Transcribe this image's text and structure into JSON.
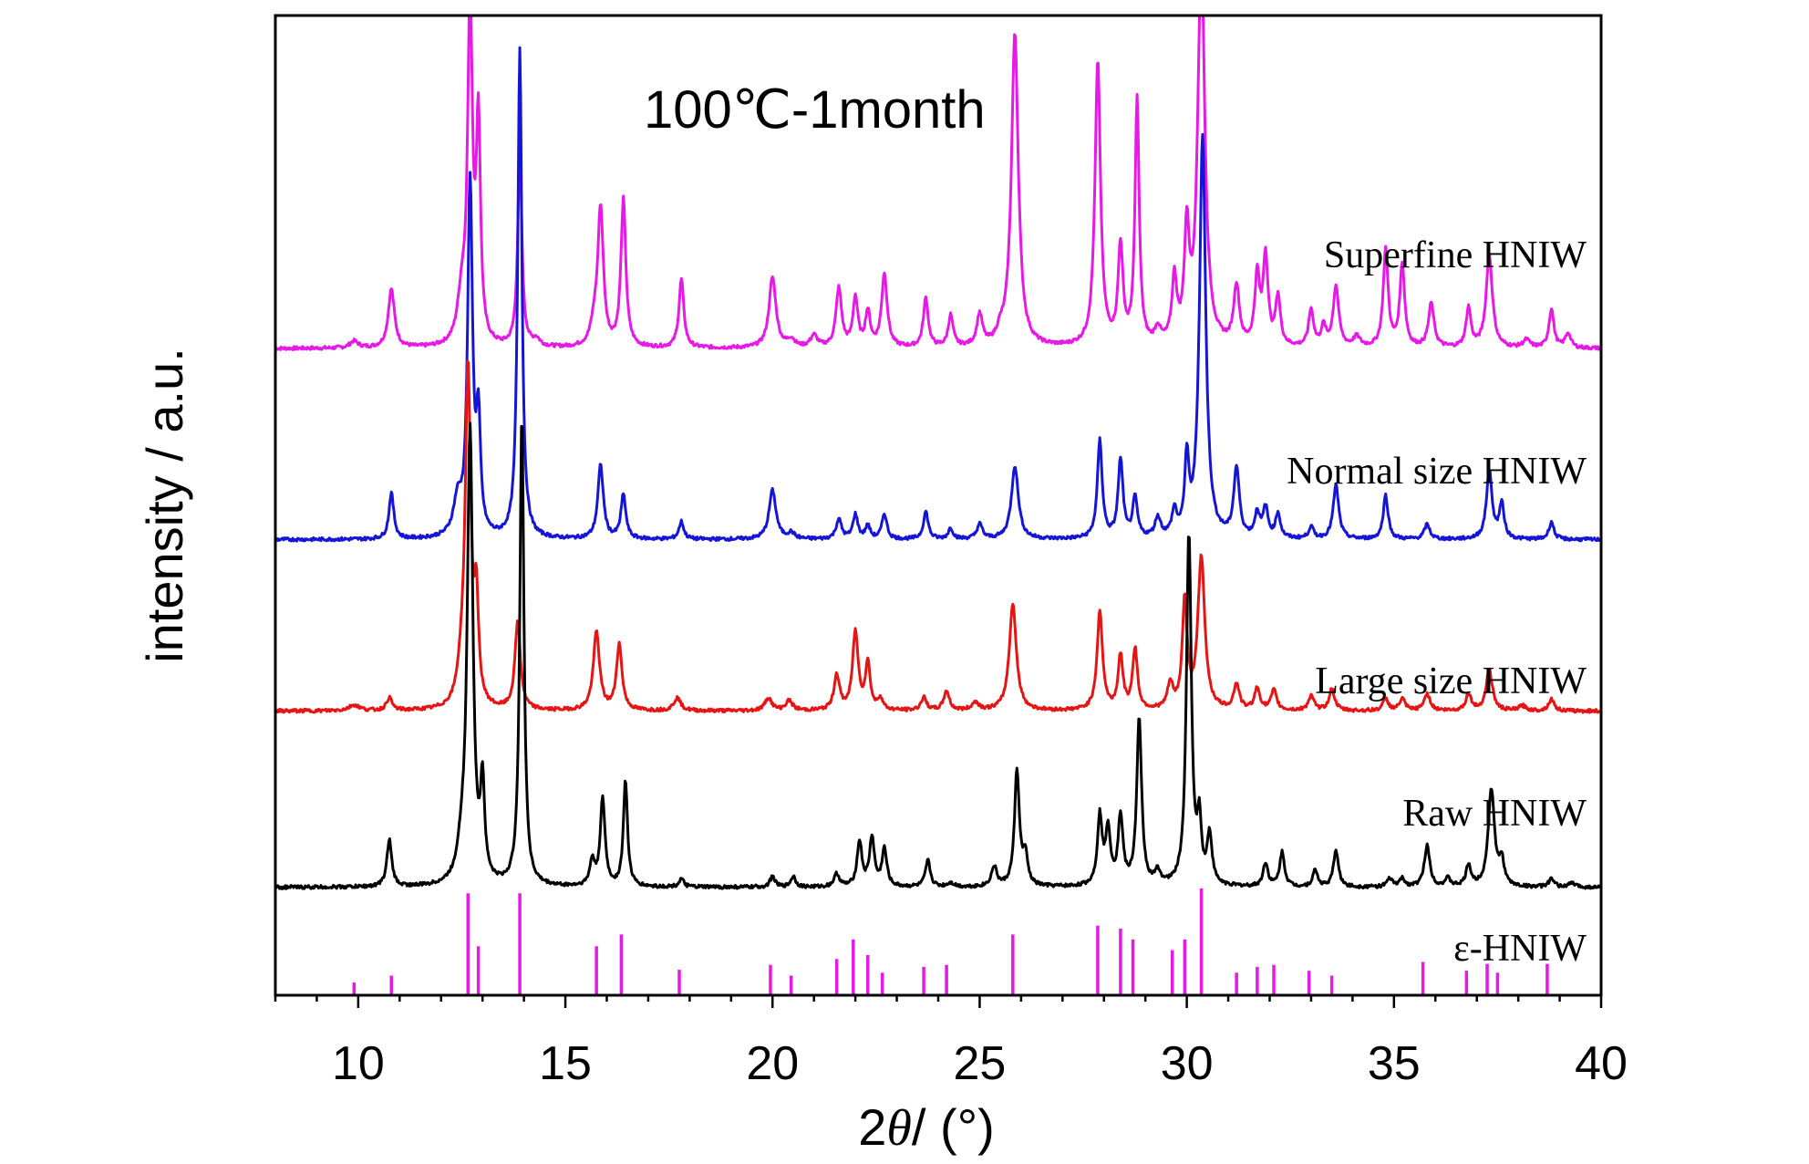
{
  "chart_data": {
    "type": "line",
    "title": "100℃-1month",
    "xlabel": "2θ/ (°)",
    "xlabel_parts": {
      "prefix": "2",
      "theta": "θ",
      "suffix": "/ (°)"
    },
    "ylabel": "intensity / a.u.",
    "xlim": [
      8,
      40
    ],
    "ylim": [
      0,
      100
    ],
    "xticks": [
      10,
      15,
      20,
      25,
      30,
      35,
      40
    ],
    "xtick_labels": [
      "10",
      "15",
      "20",
      "25",
      "30",
      "35",
      "40"
    ],
    "yticks_shown": false,
    "colors": {
      "superfine": "#e619e6",
      "normal": "#1515d6",
      "large": "#e61515",
      "raw": "#000000",
      "reference": "#e619e6"
    },
    "series": [
      {
        "key": "superfine",
        "name": "Superfine HNIW",
        "baseline": 66,
        "peaks": [
          [
            9.9,
            0.7,
            0.12
          ],
          [
            10.8,
            6,
            0.09
          ],
          [
            12.5,
            4.5,
            0.12
          ],
          [
            12.7,
            34,
            0.07
          ],
          [
            12.9,
            22,
            0.06
          ],
          [
            13.9,
            20,
            0.06
          ],
          [
            14.3,
            0.7,
            0.1
          ],
          [
            15.7,
            2,
            0.1
          ],
          [
            15.85,
            14,
            0.08
          ],
          [
            16.4,
            15,
            0.07
          ],
          [
            17.8,
            7,
            0.07
          ],
          [
            20.0,
            7.2,
            0.1
          ],
          [
            20.45,
            0.8,
            0.1
          ],
          [
            21.0,
            1.2,
            0.1
          ],
          [
            21.6,
            6,
            0.08
          ],
          [
            22.0,
            5,
            0.07
          ],
          [
            22.3,
            3.5,
            0.07
          ],
          [
            22.7,
            7.5,
            0.08
          ],
          [
            23.7,
            5,
            0.07
          ],
          [
            24.3,
            3.2,
            0.07
          ],
          [
            25.0,
            3.2,
            0.08
          ],
          [
            25.5,
            1,
            0.1
          ],
          [
            25.85,
            32,
            0.1
          ],
          [
            27.85,
            29,
            0.08
          ],
          [
            28.4,
            10,
            0.07
          ],
          [
            28.8,
            25,
            0.06
          ],
          [
            29.3,
            1.5,
            0.08
          ],
          [
            29.7,
            6.5,
            0.07
          ],
          [
            30.0,
            11,
            0.07
          ],
          [
            30.35,
            40,
            0.1
          ],
          [
            31.2,
            6,
            0.08
          ],
          [
            31.7,
            7,
            0.07
          ],
          [
            31.9,
            9,
            0.07
          ],
          [
            32.2,
            5,
            0.07
          ],
          [
            33.0,
            3.8,
            0.07
          ],
          [
            33.3,
            2,
            0.07
          ],
          [
            33.6,
            6.2,
            0.08
          ],
          [
            34.1,
            1.0,
            0.1
          ],
          [
            34.8,
            10,
            0.07
          ],
          [
            35.2,
            8.5,
            0.07
          ],
          [
            35.9,
            4.5,
            0.08
          ],
          [
            36.8,
            4,
            0.07
          ],
          [
            37.3,
            9.5,
            0.09
          ],
          [
            38.2,
            0.8,
            0.1
          ],
          [
            38.8,
            4,
            0.07
          ],
          [
            39.2,
            1.5,
            0.08
          ]
        ]
      },
      {
        "key": "normal",
        "name": "Normal size HNIW",
        "baseline": 46.5,
        "peaks": [
          [
            10.8,
            4.7,
            0.07
          ],
          [
            12.4,
            3.5,
            0.12
          ],
          [
            12.7,
            36,
            0.07
          ],
          [
            12.9,
            11,
            0.06
          ],
          [
            13.9,
            50,
            0.06
          ],
          [
            15.85,
            7.5,
            0.08
          ],
          [
            16.4,
            4.5,
            0.07
          ],
          [
            17.8,
            1.8,
            0.07
          ],
          [
            20.0,
            5,
            0.1
          ],
          [
            20.45,
            0.6,
            0.1
          ],
          [
            21.6,
            2,
            0.08
          ],
          [
            22.0,
            2.5,
            0.07
          ],
          [
            22.3,
            1.3,
            0.07
          ],
          [
            22.7,
            2.6,
            0.07
          ],
          [
            23.7,
            2.8,
            0.07
          ],
          [
            24.3,
            1.1,
            0.07
          ],
          [
            25.0,
            1.5,
            0.08
          ],
          [
            25.85,
            7.5,
            0.1
          ],
          [
            27.9,
            10,
            0.07
          ],
          [
            28.4,
            8,
            0.07
          ],
          [
            28.75,
            4,
            0.07
          ],
          [
            29.3,
            2,
            0.08
          ],
          [
            29.7,
            2.5,
            0.07
          ],
          [
            30.0,
            7.5,
            0.06
          ],
          [
            30.38,
            41,
            0.09
          ],
          [
            31.2,
            7,
            0.08
          ],
          [
            31.7,
            2.5,
            0.07
          ],
          [
            31.9,
            3,
            0.07
          ],
          [
            32.2,
            2.5,
            0.07
          ],
          [
            33.0,
            1.2,
            0.07
          ],
          [
            33.6,
            5.5,
            0.08
          ],
          [
            34.8,
            4.5,
            0.07
          ],
          [
            35.8,
            1.5,
            0.08
          ],
          [
            37.3,
            7,
            0.08
          ],
          [
            37.6,
            3.5,
            0.07
          ],
          [
            38.8,
            1.8,
            0.07
          ]
        ]
      },
      {
        "key": "large",
        "name": "Large size HNIW",
        "baseline": 29,
        "peaks": [
          [
            9.9,
            0.6,
            0.15
          ],
          [
            10.75,
            1.3,
            0.08
          ],
          [
            12.5,
            3,
            0.12
          ],
          [
            12.65,
            34,
            0.08
          ],
          [
            12.85,
            10,
            0.06
          ],
          [
            13.85,
            9,
            0.08
          ],
          [
            15.75,
            8,
            0.09
          ],
          [
            16.3,
            6.7,
            0.08
          ],
          [
            17.7,
            1.3,
            0.1
          ],
          [
            19.9,
            1.3,
            0.1
          ],
          [
            20.4,
            1,
            0.1
          ],
          [
            21.55,
            3.6,
            0.08
          ],
          [
            22.0,
            8,
            0.08
          ],
          [
            22.3,
            4.7,
            0.07
          ],
          [
            22.6,
            1.2,
            0.07
          ],
          [
            23.65,
            1.3,
            0.08
          ],
          [
            24.2,
            2,
            0.08
          ],
          [
            24.9,
            0.8,
            0.1
          ],
          [
            25.8,
            11,
            0.1
          ],
          [
            27.9,
            10,
            0.08
          ],
          [
            28.4,
            5.5,
            0.07
          ],
          [
            28.75,
            6.2,
            0.07
          ],
          [
            29.6,
            2.5,
            0.08
          ],
          [
            29.95,
            11,
            0.07
          ],
          [
            30.35,
            15.5,
            0.1
          ],
          [
            31.2,
            2.6,
            0.08
          ],
          [
            31.7,
            2.2,
            0.08
          ],
          [
            32.1,
            2,
            0.08
          ],
          [
            33.0,
            1.5,
            0.08
          ],
          [
            33.5,
            2.2,
            0.08
          ],
          [
            34.8,
            1.2,
            0.08
          ],
          [
            35.2,
            1.2,
            0.08
          ],
          [
            35.8,
            1.7,
            0.09
          ],
          [
            36.8,
            1.7,
            0.08
          ],
          [
            37.3,
            4.2,
            0.09
          ],
          [
            38.1,
            0.5,
            0.1
          ],
          [
            38.8,
            1.2,
            0.08
          ]
        ]
      },
      {
        "key": "raw",
        "name": "Raw HNIW",
        "baseline": 11,
        "peaks": [
          [
            10.75,
            4.8,
            0.07
          ],
          [
            12.5,
            3,
            0.12
          ],
          [
            12.7,
            46,
            0.08
          ],
          [
            13.0,
            9.5,
            0.06
          ],
          [
            13.95,
            48,
            0.06
          ],
          [
            15.65,
            2.5,
            0.07
          ],
          [
            15.9,
            8.8,
            0.07
          ],
          [
            16.45,
            10.8,
            0.06
          ],
          [
            17.8,
            0.8,
            0.07
          ],
          [
            20.0,
            1.1,
            0.07
          ],
          [
            20.5,
            1.1,
            0.07
          ],
          [
            21.55,
            1.3,
            0.08
          ],
          [
            22.1,
            4.6,
            0.07
          ],
          [
            22.4,
            5,
            0.07
          ],
          [
            22.7,
            3.8,
            0.07
          ],
          [
            23.75,
            2.7,
            0.07
          ],
          [
            24.3,
            0.4,
            0.1
          ],
          [
            25.35,
            2,
            0.08
          ],
          [
            25.9,
            11.8,
            0.07
          ],
          [
            26.1,
            3,
            0.07
          ],
          [
            27.9,
            7,
            0.07
          ],
          [
            28.1,
            5.5,
            0.07
          ],
          [
            28.4,
            7,
            0.07
          ],
          [
            28.85,
            17,
            0.07
          ],
          [
            29.3,
            1.3,
            0.08
          ],
          [
            30.05,
            36,
            0.07
          ],
          [
            30.3,
            6,
            0.06
          ],
          [
            30.55,
            5,
            0.07
          ],
          [
            31.9,
            2.4,
            0.07
          ],
          [
            32.3,
            3.5,
            0.07
          ],
          [
            33.1,
            1.7,
            0.07
          ],
          [
            33.6,
            3.8,
            0.07
          ],
          [
            34.9,
            0.8,
            0.08
          ],
          [
            35.2,
            0.8,
            0.08
          ],
          [
            35.8,
            4.2,
            0.08
          ],
          [
            36.3,
            0.8,
            0.08
          ],
          [
            36.8,
            2.2,
            0.07
          ],
          [
            37.35,
            10,
            0.09
          ],
          [
            37.6,
            2.5,
            0.07
          ],
          [
            38.8,
            0.8,
            0.08
          ],
          [
            39.3,
            0.4,
            0.1
          ]
        ]
      }
    ],
    "reference": {
      "key": "reference",
      "name": "ε-HNIW",
      "baseline": 0,
      "sticks": [
        [
          9.9,
          1.3
        ],
        [
          10.8,
          2.0
        ],
        [
          12.65,
          10.4
        ],
        [
          12.9,
          5.0
        ],
        [
          13.9,
          10.4
        ],
        [
          15.75,
          5.0
        ],
        [
          16.35,
          6.2
        ],
        [
          17.75,
          2.6
        ],
        [
          19.95,
          3.1
        ],
        [
          20.45,
          2.0
        ],
        [
          21.55,
          3.7
        ],
        [
          21.95,
          5.7
        ],
        [
          22.3,
          4.1
        ],
        [
          22.65,
          2.3
        ],
        [
          23.65,
          2.9
        ],
        [
          24.2,
          3.1
        ],
        [
          25.8,
          6.2
        ],
        [
          27.85,
          7.1
        ],
        [
          28.4,
          6.8
        ],
        [
          28.7,
          5.7
        ],
        [
          29.65,
          4.6
        ],
        [
          29.95,
          5.7
        ],
        [
          30.35,
          10.9
        ],
        [
          31.2,
          2.3
        ],
        [
          31.7,
          2.9
        ],
        [
          32.1,
          3.1
        ],
        [
          32.95,
          2.5
        ],
        [
          33.5,
          2.0
        ],
        [
          35.7,
          3.4
        ],
        [
          36.75,
          2.5
        ],
        [
          37.25,
          3.2
        ],
        [
          37.5,
          2.3
        ],
        [
          38.7,
          3.2
        ]
      ]
    }
  }
}
